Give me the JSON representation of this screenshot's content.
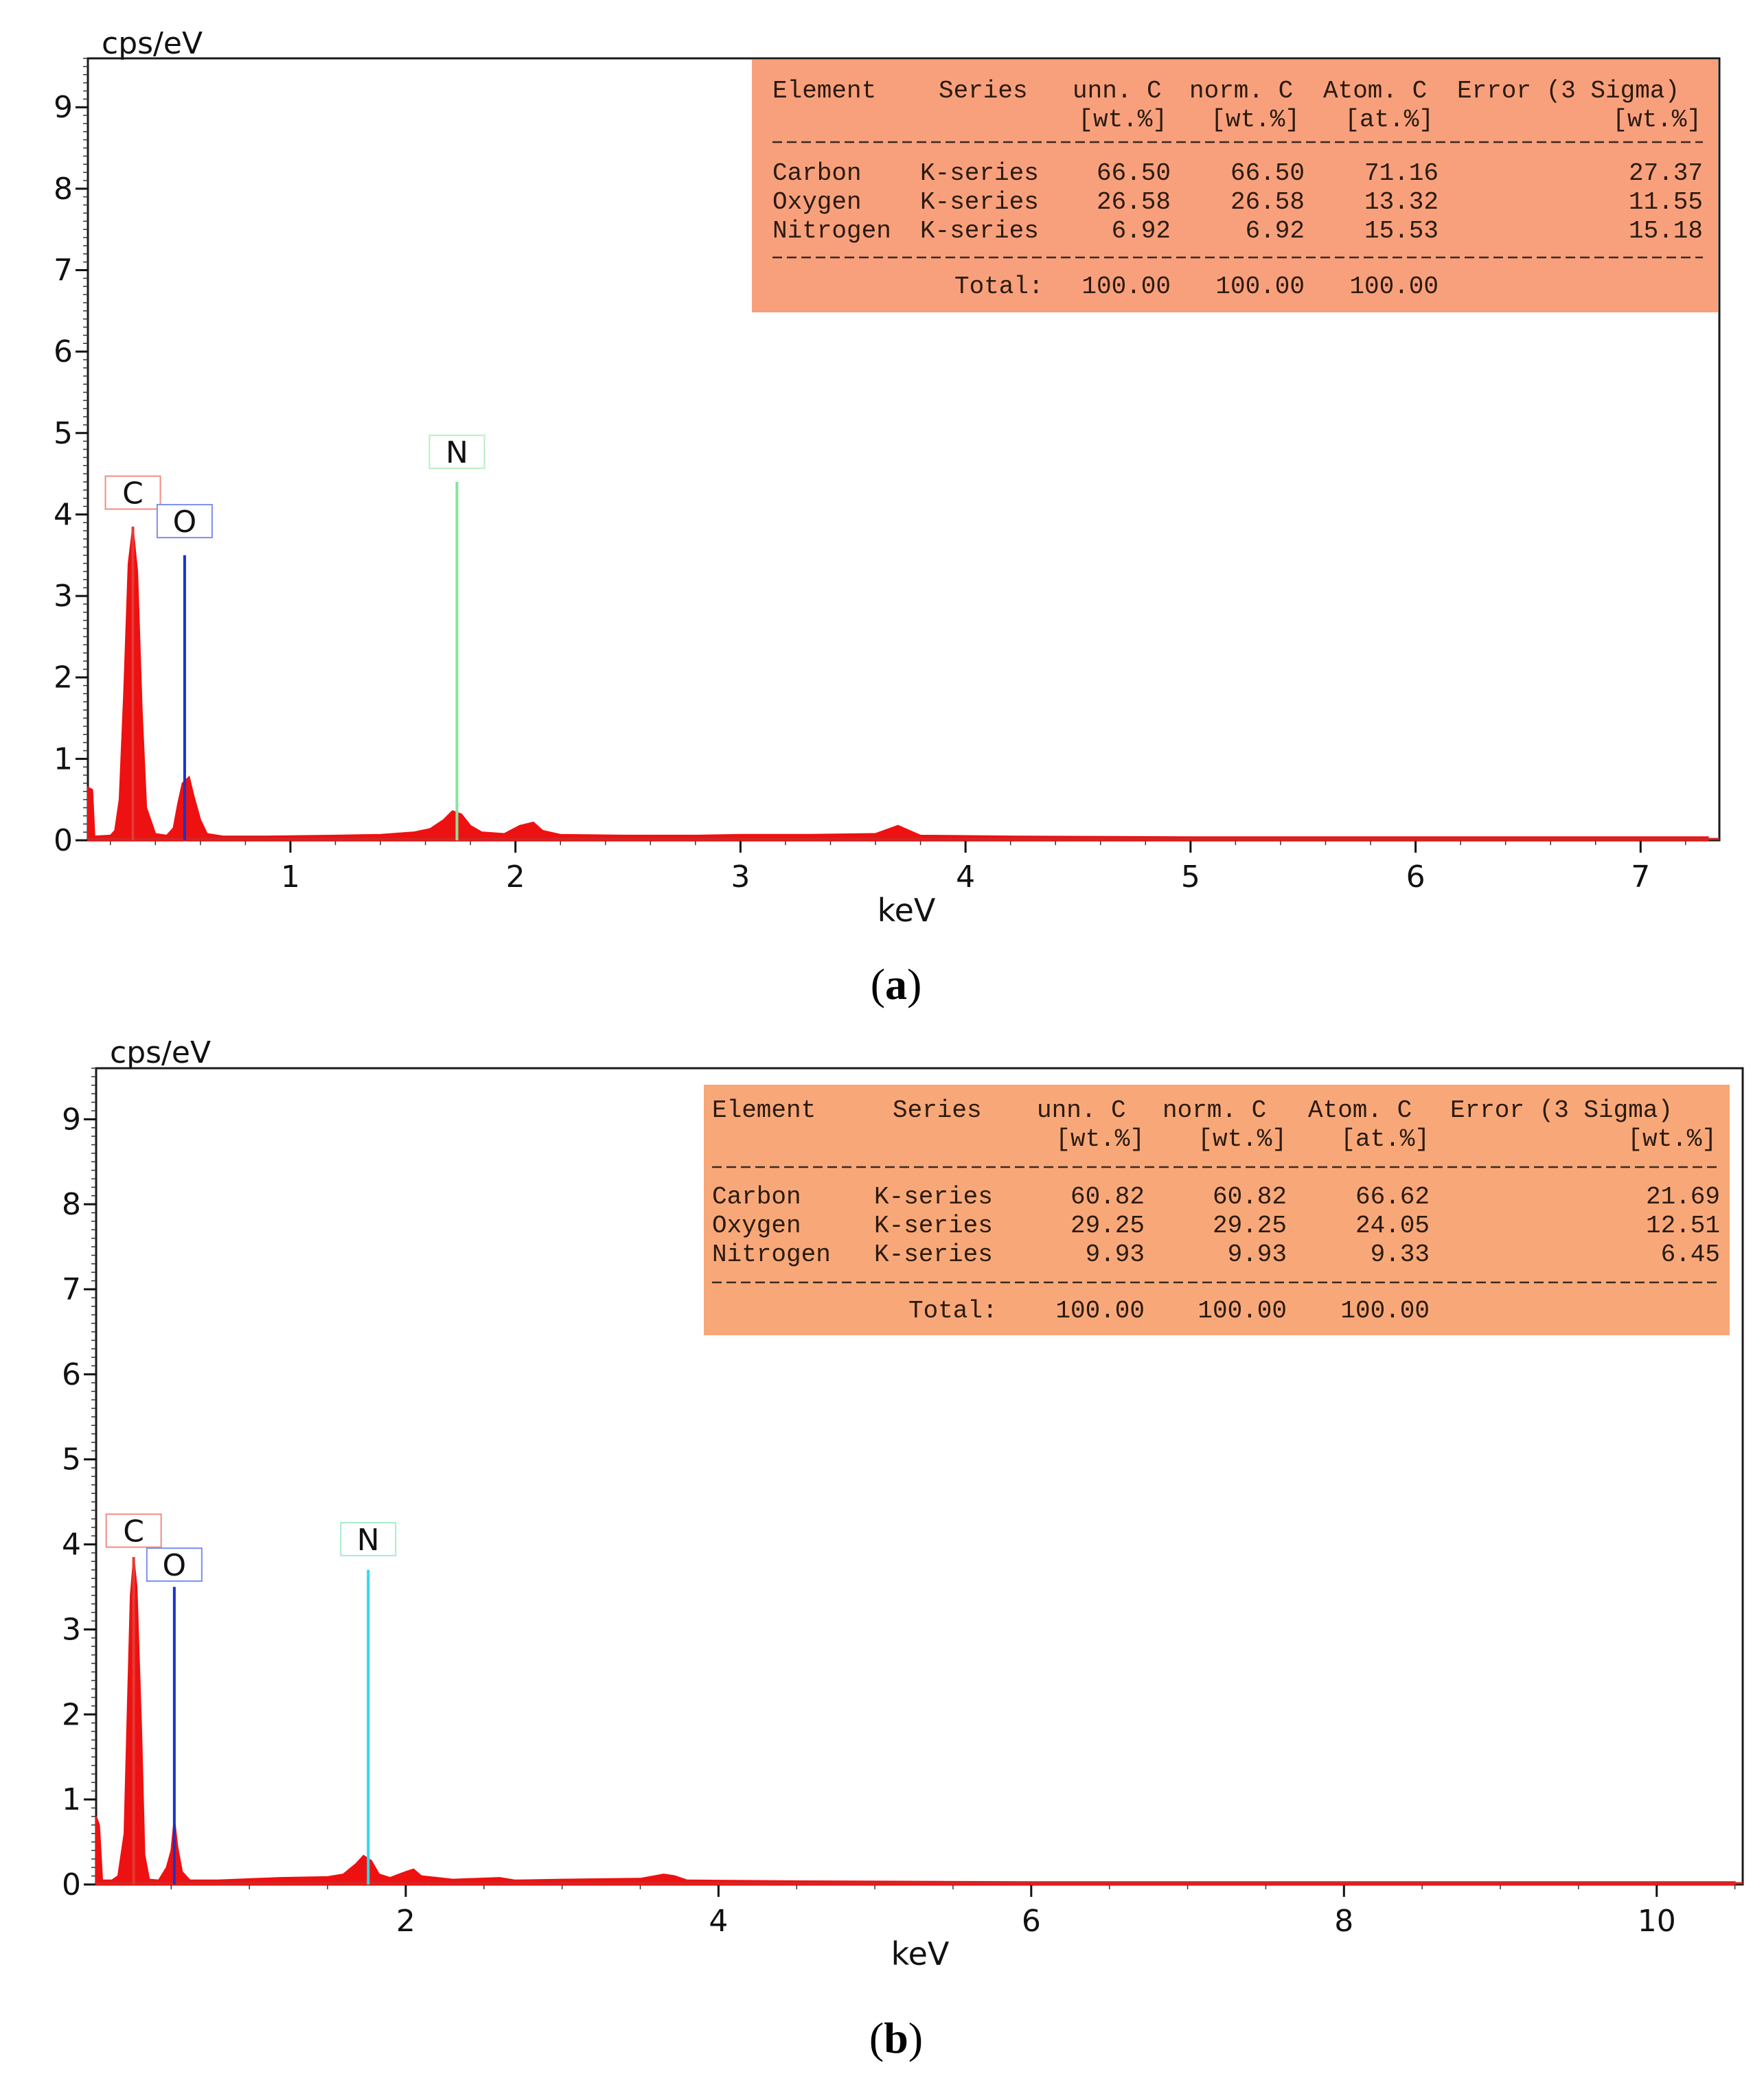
{
  "chart_data": [
    {
      "type": "line",
      "panel_label": "a",
      "unit_label": "cps/eV",
      "xlabel": "keV",
      "ylabel": "cps/eV",
      "xlim": [
        0.1,
        7.35
      ],
      "ylim": [
        0,
        9.6
      ],
      "x_ticks": [
        1,
        2,
        3,
        4,
        5,
        6,
        7
      ],
      "y_ticks": [
        0,
        1,
        2,
        3,
        4,
        5,
        6,
        7,
        8,
        9
      ],
      "spectrum": {
        "color": "#ee1111",
        "points": [
          [
            0.1,
            0.65
          ],
          [
            0.12,
            0.62
          ],
          [
            0.13,
            0.05
          ],
          [
            0.2,
            0.06
          ],
          [
            0.22,
            0.12
          ],
          [
            0.24,
            0.5
          ],
          [
            0.26,
            1.8
          ],
          [
            0.28,
            3.4
          ],
          [
            0.3,
            3.85
          ],
          [
            0.32,
            3.3
          ],
          [
            0.34,
            1.6
          ],
          [
            0.36,
            0.4
          ],
          [
            0.4,
            0.08
          ],
          [
            0.45,
            0.06
          ],
          [
            0.48,
            0.15
          ],
          [
            0.5,
            0.45
          ],
          [
            0.52,
            0.7
          ],
          [
            0.55,
            0.78
          ],
          [
            0.57,
            0.55
          ],
          [
            0.6,
            0.25
          ],
          [
            0.63,
            0.08
          ],
          [
            0.7,
            0.05
          ],
          [
            0.9,
            0.05
          ],
          [
            1.2,
            0.06
          ],
          [
            1.4,
            0.07
          ],
          [
            1.55,
            0.1
          ],
          [
            1.62,
            0.14
          ],
          [
            1.68,
            0.25
          ],
          [
            1.72,
            0.36
          ],
          [
            1.76,
            0.32
          ],
          [
            1.8,
            0.18
          ],
          [
            1.85,
            0.1
          ],
          [
            1.95,
            0.08
          ],
          [
            2.02,
            0.18
          ],
          [
            2.08,
            0.22
          ],
          [
            2.12,
            0.12
          ],
          [
            2.2,
            0.07
          ],
          [
            2.5,
            0.06
          ],
          [
            2.8,
            0.06
          ],
          [
            3.0,
            0.07
          ],
          [
            3.3,
            0.07
          ],
          [
            3.6,
            0.08
          ],
          [
            3.7,
            0.18
          ],
          [
            3.75,
            0.12
          ],
          [
            3.8,
            0.06
          ],
          [
            4.2,
            0.05
          ],
          [
            5.0,
            0.04
          ],
          [
            6.0,
            0.04
          ],
          [
            7.3,
            0.04
          ]
        ]
      },
      "peaks": [
        {
          "label": "C",
          "x": 0.3,
          "y": 3.85,
          "line_color": "#e53935",
          "box_color": "#f28b82",
          "label_y": 4.1
        },
        {
          "label": "O",
          "x": 0.53,
          "y": 3.5,
          "line_color": "#1a33c9",
          "box_color": "#7b8ff0",
          "label_y": 3.75
        },
        {
          "label": "N",
          "x": 1.74,
          "y": 4.4,
          "line_color": "#88e39a",
          "box_color": "#b7eec2",
          "label_y": 4.6
        }
      ],
      "table": {
        "fill": "#f8a07c",
        "header1": [
          "Element",
          "Series",
          "unn. C",
          "norm. C",
          "Atom. C",
          "Error (3 Sigma)"
        ],
        "header2": [
          "[wt.%]",
          "[wt.%]",
          "[at.%]",
          "[wt.%]"
        ],
        "rows": [
          [
            "Carbon",
            "K-series",
            "66.50",
            "66.50",
            "71.16",
            "27.37"
          ],
          [
            "Oxygen",
            "K-series",
            "26.58",
            "26.58",
            "13.32",
            "11.55"
          ],
          [
            "Nitrogen",
            "K-series",
            "6.92",
            "6.92",
            "15.53",
            "15.18"
          ]
        ],
        "total": [
          "Total:",
          "100.00",
          "100.00",
          "100.00"
        ]
      }
    },
    {
      "type": "line",
      "panel_label": "b",
      "unit_label": "cps/eV",
      "xlabel": "keV",
      "ylabel": "cps/eV",
      "xlim": [
        0.02,
        10.55
      ],
      "ylim": [
        0,
        9.6
      ],
      "x_ticks": [
        2,
        4,
        6,
        8,
        10
      ],
      "y_ticks": [
        0,
        1,
        2,
        3,
        4,
        5,
        6,
        7,
        8,
        9
      ],
      "spectrum": {
        "color": "#ee1111",
        "points": [
          [
            0.02,
            0.8
          ],
          [
            0.04,
            0.7
          ],
          [
            0.06,
            0.05
          ],
          [
            0.12,
            0.05
          ],
          [
            0.16,
            0.1
          ],
          [
            0.2,
            0.6
          ],
          [
            0.22,
            2.0
          ],
          [
            0.24,
            3.4
          ],
          [
            0.26,
            3.85
          ],
          [
            0.28,
            3.5
          ],
          [
            0.31,
            1.8
          ],
          [
            0.33,
            0.35
          ],
          [
            0.36,
            0.06
          ],
          [
            0.42,
            0.05
          ],
          [
            0.47,
            0.2
          ],
          [
            0.5,
            0.4
          ],
          [
            0.52,
            0.78
          ],
          [
            0.54,
            0.45
          ],
          [
            0.57,
            0.15
          ],
          [
            0.62,
            0.05
          ],
          [
            0.8,
            0.05
          ],
          [
            1.2,
            0.08
          ],
          [
            1.5,
            0.09
          ],
          [
            1.6,
            0.12
          ],
          [
            1.68,
            0.24
          ],
          [
            1.73,
            0.34
          ],
          [
            1.78,
            0.28
          ],
          [
            1.83,
            0.12
          ],
          [
            1.9,
            0.08
          ],
          [
            2.0,
            0.15
          ],
          [
            2.05,
            0.18
          ],
          [
            2.1,
            0.1
          ],
          [
            2.3,
            0.06
          ],
          [
            2.6,
            0.08
          ],
          [
            2.7,
            0.05
          ],
          [
            3.0,
            0.06
          ],
          [
            3.5,
            0.07
          ],
          [
            3.65,
            0.12
          ],
          [
            3.72,
            0.1
          ],
          [
            3.8,
            0.05
          ],
          [
            4.5,
            0.04
          ],
          [
            6.0,
            0.03
          ],
          [
            8.0,
            0.03
          ],
          [
            10.5,
            0.03
          ]
        ]
      },
      "peaks": [
        {
          "label": "C",
          "x": 0.26,
          "y": 3.85,
          "line_color": "#e53935",
          "box_color": "#f28b82",
          "label_y": 4.0
        },
        {
          "label": "O",
          "x": 0.52,
          "y": 3.5,
          "line_color": "#1a33c9",
          "box_color": "#7b8ff0",
          "label_y": 3.6
        },
        {
          "label": "N",
          "x": 1.76,
          "y": 3.7,
          "line_color": "#35d6e8",
          "box_color": "#a8eec6",
          "label_y": 3.9
        }
      ],
      "table": {
        "fill": "#f8a878",
        "header1": [
          "Element",
          "Series",
          "unn. C",
          "norm. C",
          "Atom. C",
          "Error (3 Sigma)"
        ],
        "header2": [
          "[wt.%]",
          "[wt.%]",
          "[at.%]",
          "[wt.%]"
        ],
        "rows": [
          [
            "Carbon",
            "K-series",
            "60.82",
            "60.82",
            "66.62",
            "21.69"
          ],
          [
            "Oxygen",
            "K-series",
            "29.25",
            "29.25",
            "24.05",
            "12.51"
          ],
          [
            "Nitrogen",
            "K-series",
            "9.93",
            "9.93",
            "9.33",
            "6.45"
          ]
        ],
        "total": [
          "Total:",
          "100.00",
          "100.00",
          "100.00"
        ]
      }
    }
  ],
  "captions": [
    "a",
    "b"
  ]
}
